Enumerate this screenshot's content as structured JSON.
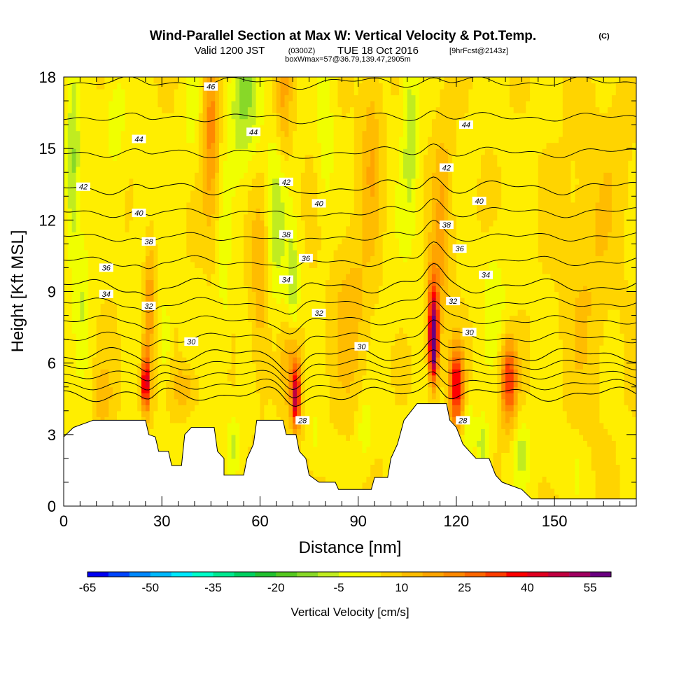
{
  "title": {
    "main": "Wind-Parallel Section at Max W: Vertical Velocity & Pot.Temp.",
    "copyright": "(C)",
    "valid_prefix": "Valid 1200 JST",
    "valid_utc": "(0300Z)",
    "valid_date": "TUE 18 Oct 2016",
    "forecast": "[9hrFcst@2143z]",
    "boxwmax": "boxWmax=57@36.79,139.47,2905m"
  },
  "chart_data": {
    "type": "heatmap",
    "title": "Wind-Parallel Section at Max W: Vertical Velocity & Pot.Temp.",
    "xlabel": "Distance [nm]",
    "ylabel": "Height [Kft MSL]",
    "xlim": [
      0,
      175
    ],
    "ylim": [
      0,
      18
    ],
    "x_ticks": [
      0,
      30,
      60,
      90,
      120,
      150
    ],
    "y_ticks": [
      0,
      3,
      6,
      9,
      12,
      15,
      18
    ],
    "colorbar": {
      "label": "Vertical Velocity [cm/s]",
      "tick_values": [
        -65,
        -50,
        -35,
        -20,
        -5,
        10,
        25,
        40,
        55
      ],
      "bins": [
        -65,
        -60,
        -55,
        -50,
        -45,
        -40,
        -35,
        -30,
        -25,
        -20,
        -15,
        -10,
        -5,
        0,
        5,
        10,
        15,
        20,
        25,
        30,
        35,
        40,
        45,
        50,
        55,
        60
      ],
      "colors": [
        "#0000f0",
        "#0044ff",
        "#0088ff",
        "#00b8ff",
        "#00e8ff",
        "#00ffc8",
        "#00e890",
        "#00d060",
        "#22c030",
        "#55c820",
        "#88d828",
        "#c0ec20",
        "#f0ff00",
        "#ffee00",
        "#ffd400",
        "#ffbc00",
        "#ffa400",
        "#ff8800",
        "#ff6600",
        "#ff3c00",
        "#ff0000",
        "#e00020",
        "#c00040",
        "#a00060",
        "#6a0080"
      ]
    },
    "theta_contours": [
      28,
      30,
      32,
      34,
      36,
      38,
      40,
      42,
      44,
      46
    ],
    "theta_labels": [
      {
        "x": 73,
        "y": 3.6,
        "text": "28"
      },
      {
        "x": 122,
        "y": 3.6,
        "text": "28"
      },
      {
        "x": 39,
        "y": 6.9,
        "text": "30"
      },
      {
        "x": 91,
        "y": 6.7,
        "text": "30"
      },
      {
        "x": 124,
        "y": 7.3,
        "text": "30"
      },
      {
        "x": 26,
        "y": 8.4,
        "text": "32"
      },
      {
        "x": 78,
        "y": 8.1,
        "text": "32"
      },
      {
        "x": 119,
        "y": 8.6,
        "text": "32"
      },
      {
        "x": 13,
        "y": 8.9,
        "text": "34"
      },
      {
        "x": 68,
        "y": 9.5,
        "text": "34"
      },
      {
        "x": 129,
        "y": 9.7,
        "text": "34"
      },
      {
        "x": 13,
        "y": 10.0,
        "text": "36"
      },
      {
        "x": 74,
        "y": 10.4,
        "text": "36"
      },
      {
        "x": 121,
        "y": 10.8,
        "text": "36"
      },
      {
        "x": 26,
        "y": 11.1,
        "text": "38"
      },
      {
        "x": 68,
        "y": 11.4,
        "text": "38"
      },
      {
        "x": 117,
        "y": 11.8,
        "text": "38"
      },
      {
        "x": 23,
        "y": 12.3,
        "text": "40"
      },
      {
        "x": 78,
        "y": 12.7,
        "text": "40"
      },
      {
        "x": 127,
        "y": 12.8,
        "text": "40"
      },
      {
        "x": 6,
        "y": 13.4,
        "text": "42"
      },
      {
        "x": 68,
        "y": 13.6,
        "text": "42"
      },
      {
        "x": 117,
        "y": 14.2,
        "text": "42"
      },
      {
        "x": 23,
        "y": 15.4,
        "text": "44"
      },
      {
        "x": 58,
        "y": 15.7,
        "text": "44"
      },
      {
        "x": 123,
        "y": 16.0,
        "text": "44"
      },
      {
        "x": 45,
        "y": 17.6,
        "text": "46"
      }
    ],
    "terrain": [
      [
        0,
        2.9
      ],
      [
        3,
        3.3
      ],
      [
        9,
        3.6
      ],
      [
        25,
        3.6
      ],
      [
        26,
        3.0
      ],
      [
        28,
        2.9
      ],
      [
        29,
        2.3
      ],
      [
        32,
        2.3
      ],
      [
        33,
        1.7
      ],
      [
        36,
        1.7
      ],
      [
        37,
        3.0
      ],
      [
        39,
        3.3
      ],
      [
        46,
        3.3
      ],
      [
        47,
        2.3
      ],
      [
        49,
        2.0
      ],
      [
        49,
        1.3
      ],
      [
        55,
        1.3
      ],
      [
        56,
        2.0
      ],
      [
        58,
        2.6
      ],
      [
        59,
        3.6
      ],
      [
        67,
        3.6
      ],
      [
        68,
        3.0
      ],
      [
        71,
        3.0
      ],
      [
        72,
        2.3
      ],
      [
        74,
        2.0
      ],
      [
        75,
        1.3
      ],
      [
        78,
        1.0
      ],
      [
        83,
        1.0
      ],
      [
        84,
        0.7
      ],
      [
        88,
        0.7
      ],
      [
        90,
        0.7
      ],
      [
        94,
        0.7
      ],
      [
        95,
        1.2
      ],
      [
        99,
        1.2
      ],
      [
        100,
        2.0
      ],
      [
        102,
        2.6
      ],
      [
        104,
        3.6
      ],
      [
        108,
        4.3
      ],
      [
        117,
        4.3
      ],
      [
        118,
        3.6
      ],
      [
        120,
        3.3
      ],
      [
        122,
        2.6
      ],
      [
        124,
        2.3
      ],
      [
        126,
        2.0
      ],
      [
        130,
        2.0
      ],
      [
        132,
        1.3
      ],
      [
        134,
        1.0
      ],
      [
        136,
        0.9
      ],
      [
        140,
        0.7
      ],
      [
        143,
        0.3
      ],
      [
        150,
        0.3
      ],
      [
        175,
        0.3
      ]
    ],
    "w_features": [
      {
        "x": 3,
        "y": 14,
        "sx": 2.2,
        "sy": 4,
        "v": -16
      },
      {
        "x": 6,
        "y": 9,
        "sx": 2,
        "sy": 3,
        "v": -8
      },
      {
        "x": 16,
        "y": 16.5,
        "sx": 3,
        "sy": 2,
        "v": -8
      },
      {
        "x": 25,
        "y": 5.2,
        "sx": 1.3,
        "sy": 1.2,
        "v": 42
      },
      {
        "x": 26,
        "y": 8.5,
        "sx": 2,
        "sy": 3,
        "v": 16
      },
      {
        "x": 31,
        "y": 7,
        "sx": 1.8,
        "sy": 2,
        "v": -10
      },
      {
        "x": 24,
        "y": 12,
        "sx": 2.5,
        "sy": 3,
        "v": -8
      },
      {
        "x": 37,
        "y": 5,
        "sx": 4,
        "sy": 1,
        "v": 10
      },
      {
        "x": 39,
        "y": 16.5,
        "sx": 2.5,
        "sy": 3,
        "v": -6
      },
      {
        "x": 45,
        "y": 16,
        "sx": 2.5,
        "sy": 4,
        "v": 18
      },
      {
        "x": 49,
        "y": 9,
        "sx": 2,
        "sy": 4,
        "v": -6
      },
      {
        "x": 52,
        "y": 2.6,
        "sx": 2,
        "sy": 1.3,
        "v": -10
      },
      {
        "x": 55,
        "y": 17,
        "sx": 5,
        "sy": 3,
        "v": -15
      },
      {
        "x": 60,
        "y": 9,
        "sx": 3,
        "sy": 4,
        "v": 10
      },
      {
        "x": 65,
        "y": 12,
        "sx": 3,
        "sy": 4,
        "v": -12
      },
      {
        "x": 70,
        "y": 9,
        "sx": 2,
        "sy": 2.5,
        "v": -14
      },
      {
        "x": 67,
        "y": 17,
        "sx": 2.5,
        "sy": 3,
        "v": 12
      },
      {
        "x": 71,
        "y": 4.5,
        "sx": 1.3,
        "sy": 1.3,
        "v": 38
      },
      {
        "x": 70,
        "y": 6,
        "sx": 3,
        "sy": 2,
        "v": 14
      },
      {
        "x": 77,
        "y": 2.8,
        "sx": 1.8,
        "sy": 1.5,
        "v": -5
      },
      {
        "x": 80,
        "y": 16,
        "sx": 2.5,
        "sy": 4,
        "v": -8
      },
      {
        "x": 92,
        "y": 3.2,
        "sx": 2.5,
        "sy": 1.5,
        "v": -8
      },
      {
        "x": 94,
        "y": 15,
        "sx": 3,
        "sy": 4,
        "v": 10
      },
      {
        "x": 106,
        "y": 16,
        "sx": 2.5,
        "sy": 4,
        "v": -12
      },
      {
        "x": 103,
        "y": 10,
        "sx": 4,
        "sy": 5,
        "v": -2
      },
      {
        "x": 113,
        "y": 6.8,
        "sx": 1.4,
        "sy": 1.6,
        "v": 58
      },
      {
        "x": 113,
        "y": 8.5,
        "sx": 2,
        "sy": 2,
        "v": 22
      },
      {
        "x": 116,
        "y": 12,
        "sx": 3,
        "sy": 4,
        "v": 12
      },
      {
        "x": 120,
        "y": 5,
        "sx": 2.2,
        "sy": 1.6,
        "v": 36
      },
      {
        "x": 124,
        "y": 3.4,
        "sx": 1.8,
        "sy": 1.2,
        "v": -8
      },
      {
        "x": 128,
        "y": 2.5,
        "sx": 1.7,
        "sy": 1.2,
        "v": -14
      },
      {
        "x": 131,
        "y": 9,
        "sx": 3,
        "sy": 2.5,
        "v": -6
      },
      {
        "x": 136,
        "y": 5.3,
        "sx": 2.5,
        "sy": 1.8,
        "v": 30
      },
      {
        "x": 135,
        "y": 8,
        "sx": 4,
        "sy": 2,
        "v": -4
      },
      {
        "x": 140,
        "y": 2.3,
        "sx": 2.5,
        "sy": 1.4,
        "v": -10
      },
      {
        "x": 150,
        "y": 2,
        "sx": 4,
        "sy": 1.5,
        "v": -3
      },
      {
        "x": 157,
        "y": 1.6,
        "sx": 1.5,
        "sy": 1,
        "v": -4
      },
      {
        "x": 160,
        "y": 10,
        "sx": 8,
        "sy": 6,
        "v": 6
      },
      {
        "x": 170,
        "y": 15,
        "sx": 5,
        "sy": 4,
        "v": 3
      },
      {
        "x": 88,
        "y": 8,
        "sx": 6,
        "sy": 4,
        "v": 8
      },
      {
        "x": 12,
        "y": 4.5,
        "sx": 3,
        "sy": 1.5,
        "v": 8
      }
    ]
  }
}
